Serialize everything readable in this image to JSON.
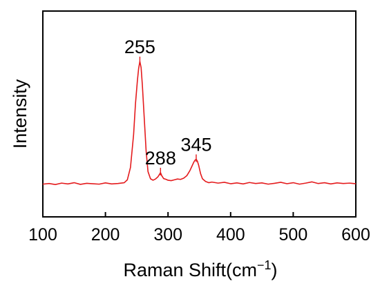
{
  "chart_data": {
    "type": "line",
    "xlabel": "Raman Shift(cm",
    "xlabel_superscript": "−1",
    "xlabel_suffix": ")",
    "ylabel": "Intensity",
    "xlim": [
      100,
      600
    ],
    "ylim": [
      0,
      100
    ],
    "y_ticks_shown": false,
    "grid": false,
    "x_ticks": [
      100,
      200,
      300,
      400,
      500,
      600
    ],
    "x_tick_labels": [
      "100",
      "200",
      "300",
      "400",
      "500",
      "600"
    ],
    "series_color": "#e41a1c",
    "series": [
      {
        "x": [
          100,
          110,
          120,
          130,
          140,
          150,
          160,
          170,
          180,
          190,
          200,
          210,
          220,
          230,
          235,
          240,
          245,
          248,
          251,
          253,
          255,
          257,
          259,
          262,
          265,
          268,
          272,
          276,
          280,
          284,
          286,
          288,
          290,
          293,
          297,
          300,
          305,
          310,
          315,
          320,
          325,
          330,
          335,
          338,
          341,
          343,
          345,
          347,
          349,
          352,
          355,
          360,
          365,
          370,
          380,
          390,
          400,
          410,
          420,
          430,
          440,
          450,
          460,
          470,
          480,
          490,
          500,
          510,
          520,
          530,
          540,
          550,
          560,
          570,
          580,
          590,
          600
        ],
        "y": [
          15.9,
          16.2,
          15.7,
          16.4,
          16.0,
          16.6,
          15.8,
          16.3,
          16.1,
          15.9,
          16.5,
          16.0,
          16.2,
          16.6,
          18.0,
          24.0,
          40.0,
          55.0,
          66.0,
          72.0,
          75.5,
          72.5,
          64.0,
          48.0,
          32.0,
          22.0,
          18.5,
          17.8,
          18.4,
          19.5,
          20.5,
          21.5,
          20.0,
          18.6,
          18.2,
          17.8,
          17.6,
          18.0,
          18.4,
          18.2,
          18.8,
          20.0,
          22.5,
          24.5,
          26.5,
          27.5,
          28.0,
          27.0,
          25.0,
          21.0,
          18.5,
          17.2,
          16.6,
          16.9,
          16.4,
          16.8,
          16.1,
          16.5,
          16.0,
          16.7,
          16.2,
          16.5,
          15.9,
          16.3,
          16.8,
          16.1,
          16.6,
          15.9,
          16.4,
          17.0,
          16.2,
          16.6,
          16.0,
          16.5,
          16.2,
          16.4,
          16.1
        ]
      }
    ],
    "annotations": [
      {
        "x": 255,
        "y": 75.5,
        "label": "255"
      },
      {
        "x": 288,
        "y": 21.5,
        "label": "288"
      },
      {
        "x": 345,
        "y": 28.0,
        "label": "345"
      }
    ]
  }
}
